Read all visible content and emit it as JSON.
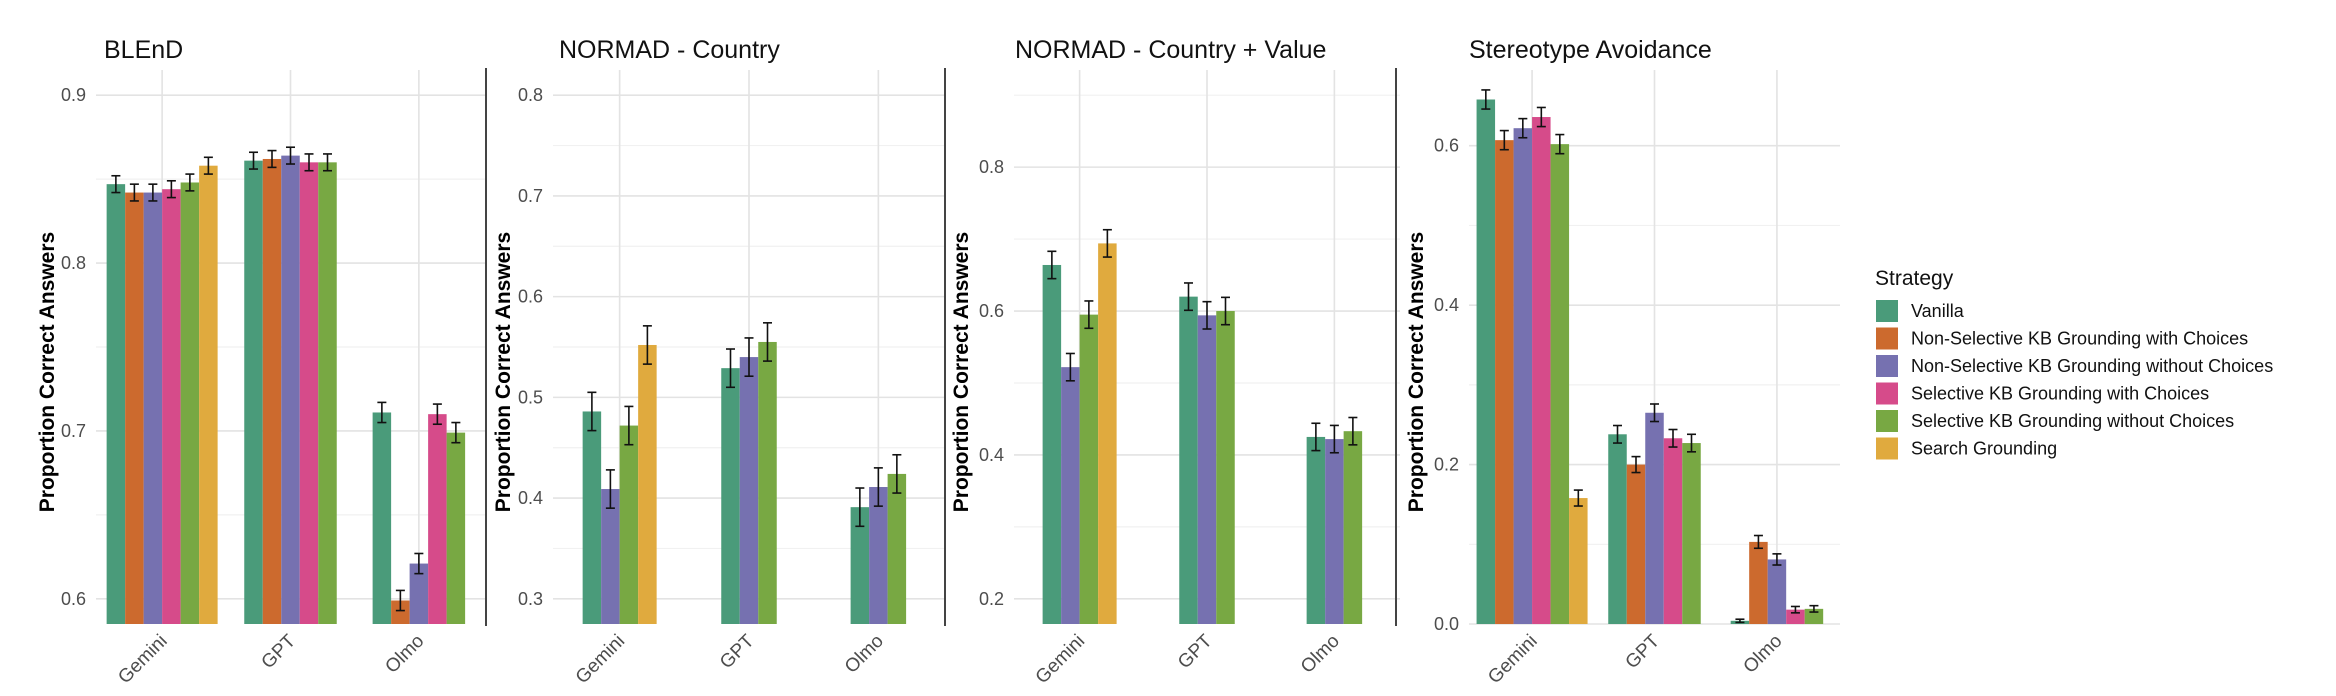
{
  "chart_data": {
    "type": "bar",
    "legend": {
      "title": "Strategy",
      "position": "right",
      "entries": [
        {
          "name": "Vanilla",
          "color": "#4a9b7a"
        },
        {
          "name": "Non-Selective KB Grounding with Choices",
          "color": "#cc6a2e"
        },
        {
          "name": "Non-Selective KB Grounding without Choices",
          "color": "#7671b0"
        },
        {
          "name": "Selective KB Grounding with Choices",
          "color": "#d64b8a"
        },
        {
          "name": "Selective KB Grounding without Choices",
          "color": "#78a843"
        },
        {
          "name": "Search Grounding",
          "color": "#e0aa3e"
        }
      ]
    },
    "panels": [
      {
        "title": "BLEnD",
        "ylabel": "Proportion Correct Answers",
        "ylim": [
          0.585,
          0.915
        ],
        "yticks": [
          0.6,
          0.7,
          0.8,
          0.9
        ],
        "ytick_labels": [
          "0.6",
          "0.7",
          "0.8",
          "0.9"
        ],
        "categories": [
          "Gemini",
          "GPT",
          "Olmo"
        ],
        "groups": [
          [
            [
              0,
              0.847,
              0.005
            ],
            [
              1,
              0.842,
              0.005
            ],
            [
              2,
              0.842,
              0.005
            ],
            [
              3,
              0.844,
              0.005
            ],
            [
              4,
              0.848,
              0.005
            ],
            [
              5,
              0.858,
              0.005
            ]
          ],
          [
            [
              0,
              0.861,
              0.005
            ],
            [
              1,
              0.862,
              0.005
            ],
            [
              2,
              0.864,
              0.005
            ],
            [
              3,
              0.86,
              0.005
            ],
            [
              4,
              0.86,
              0.005
            ]
          ],
          [
            [
              0,
              0.711,
              0.006
            ],
            [
              1,
              0.599,
              0.006
            ],
            [
              2,
              0.621,
              0.006
            ],
            [
              3,
              0.71,
              0.006
            ],
            [
              4,
              0.699,
              0.006
            ]
          ]
        ]
      },
      {
        "title": "NORMAD - Country",
        "ylabel": "Proportion Correct Answers",
        "ylim": [
          0.275,
          0.825
        ],
        "yticks": [
          0.3,
          0.4,
          0.5,
          0.6,
          0.7,
          0.8
        ],
        "ytick_labels": [
          "0.3",
          "0.4",
          "0.5",
          "0.6",
          "0.7",
          "0.8"
        ],
        "categories": [
          "Gemini",
          "GPT",
          "Olmo"
        ],
        "groups": [
          [
            [
              0,
              0.486,
              0.019
            ],
            [
              2,
              0.409,
              0.019
            ],
            [
              4,
              0.472,
              0.019
            ],
            [
              5,
              0.552,
              0.019
            ]
          ],
          [
            [
              0,
              0.529,
              0.019
            ],
            [
              2,
              0.54,
              0.019
            ],
            [
              4,
              0.555,
              0.019
            ]
          ],
          [
            [
              0,
              0.391,
              0.019
            ],
            [
              2,
              0.411,
              0.019
            ],
            [
              4,
              0.424,
              0.019
            ]
          ]
        ]
      },
      {
        "title": "NORMAD - Country + Value",
        "ylabel": "Proportion Correct Answers",
        "ylim": [
          0.165,
          0.935
        ],
        "yticks": [
          0.2,
          0.4,
          0.6,
          0.8
        ],
        "ytick_labels": [
          "0.2",
          "0.4",
          "0.6",
          "0.8"
        ],
        "categories": [
          "Gemini",
          "GPT",
          "Olmo"
        ],
        "groups": [
          [
            [
              0,
              0.664,
              0.019
            ],
            [
              2,
              0.522,
              0.019
            ],
            [
              4,
              0.595,
              0.019
            ],
            [
              5,
              0.694,
              0.019
            ]
          ],
          [
            [
              0,
              0.62,
              0.019
            ],
            [
              2,
              0.594,
              0.019
            ],
            [
              4,
              0.6,
              0.019
            ]
          ],
          [
            [
              0,
              0.425,
              0.019
            ],
            [
              2,
              0.422,
              0.019
            ],
            [
              4,
              0.433,
              0.019
            ]
          ]
        ]
      },
      {
        "title": "Stereotype Avoidance",
        "ylabel": "Proportion Correct Answers",
        "ylim": [
          0.0,
          0.695
        ],
        "yticks": [
          0.0,
          0.2,
          0.4,
          0.6
        ],
        "ytick_labels": [
          "0.0",
          "0.2",
          "0.4",
          "0.6"
        ],
        "categories": [
          "Gemini",
          "GPT",
          "Olmo"
        ],
        "groups": [
          [
            [
              0,
              0.658,
              0.012
            ],
            [
              1,
              0.607,
              0.012
            ],
            [
              2,
              0.622,
              0.012
            ],
            [
              3,
              0.636,
              0.012
            ],
            [
              4,
              0.602,
              0.012
            ],
            [
              5,
              0.158,
              0.01
            ]
          ],
          [
            [
              0,
              0.238,
              0.011
            ],
            [
              1,
              0.2,
              0.01
            ],
            [
              2,
              0.265,
              0.011
            ],
            [
              3,
              0.233,
              0.011
            ],
            [
              4,
              0.227,
              0.011
            ]
          ],
          [
            [
              0,
              0.004,
              0.002
            ],
            [
              1,
              0.103,
              0.008
            ],
            [
              2,
              0.081,
              0.007
            ],
            [
              3,
              0.018,
              0.004
            ],
            [
              4,
              0.019,
              0.004
            ]
          ]
        ]
      }
    ]
  }
}
